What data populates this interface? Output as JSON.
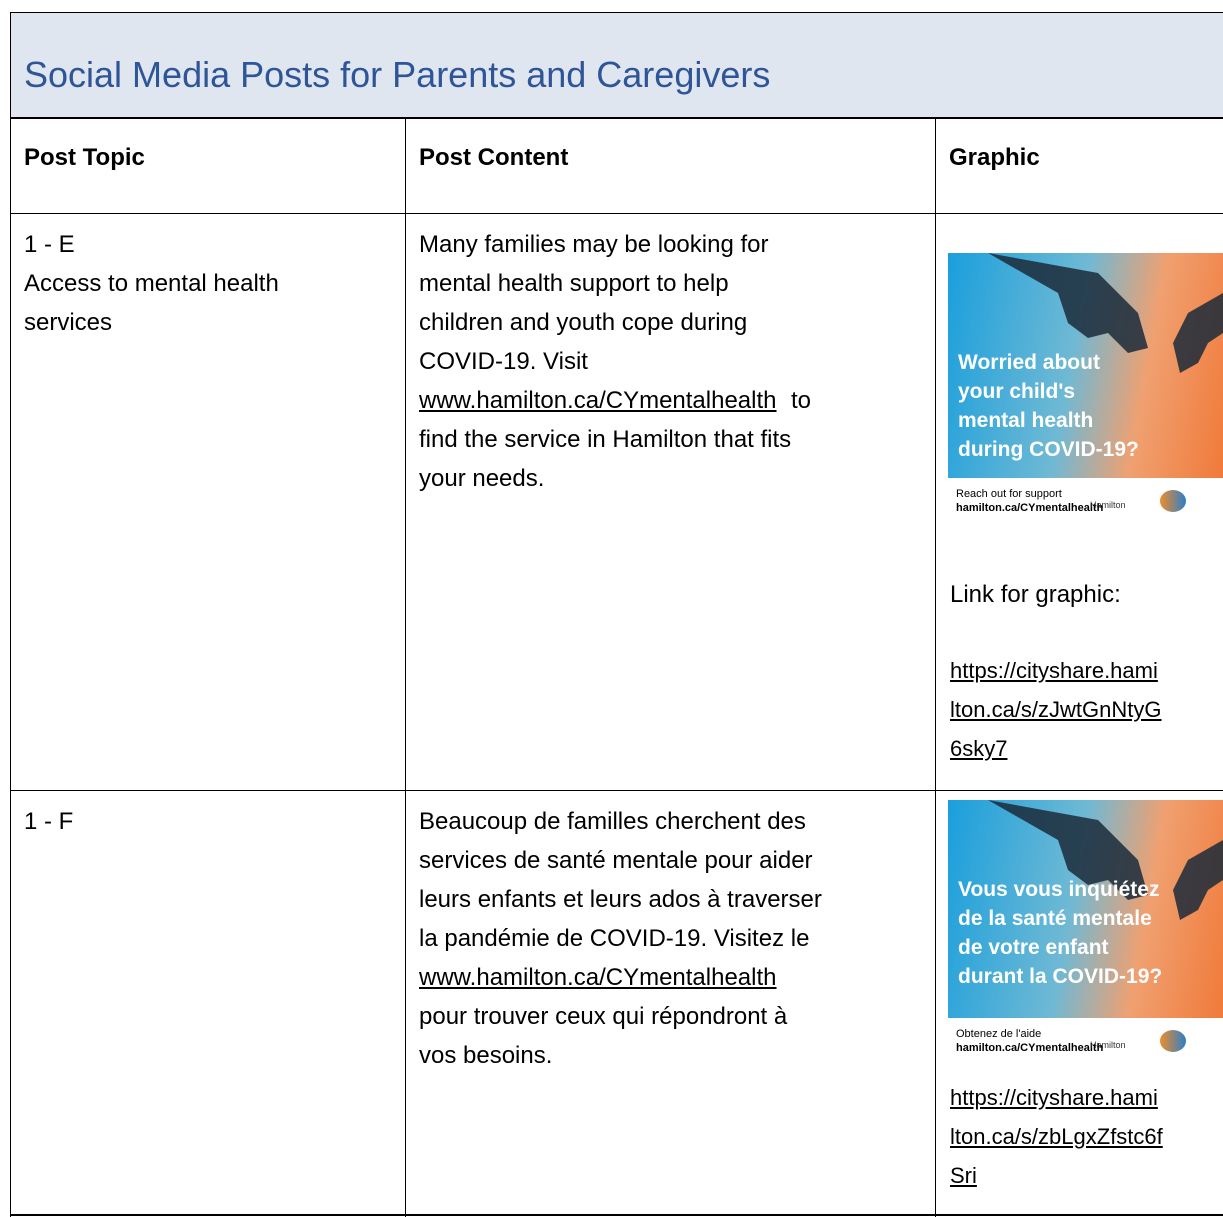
{
  "title": "Social Media Posts for Parents and Caregivers",
  "table": {
    "headers": [
      "Post Topic",
      "Post Content",
      "Graphic"
    ],
    "rows": [
      {
        "topic": [
          "1 - E",
          "Access to mental health",
          "services"
        ],
        "content": {
          "before": [
            "Many families may be looking for",
            "mental health support to help",
            "children and youth cope during",
            "COVID-19. Visit"
          ],
          "link": "www.hamilton.ca/CYmentalhealth",
          "link_after": "to",
          "after": [
            "find the service in Hamilton that fits",
            "your needs."
          ]
        },
        "graphic": {
          "headline": [
            "Worried about",
            "your child's",
            "mental health",
            "during COVID-19?"
          ],
          "footer": "Reach out for support",
          "footer_url": "hamilton.ca/CYmentalhealth",
          "logo": "Hamilton",
          "link_label": "Link for graphic:",
          "link": [
            "https://cityshare.hami",
            "lton.ca/s/zJwtGnNtyG",
            "6sky7"
          ]
        }
      },
      {
        "topic": [
          "1 - F"
        ],
        "content": {
          "before": [
            "Beaucoup de familles cherchent des",
            "services de santé mentale pour aider",
            "leurs enfants et leurs ados à traverser",
            "la pandémie de COVID-19. Visitez le"
          ],
          "link": "www.hamilton.ca/CYmentalhealth",
          "link_after": "",
          "after": [
            "pour trouver ceux qui répondront à",
            "vos besoins."
          ]
        },
        "graphic": {
          "headline": [
            "Vous vous inquiétez",
            "de la santé mentale",
            "de votre enfant",
            "durant la COVID-19?"
          ],
          "footer": "Obtenez de l'aide",
          "footer_url": "hamilton.ca/CYmentalhealth",
          "logo": "Hamilton",
          "link_label": "",
          "link": [
            "https://cityshare.hami",
            "lton.ca/s/zbLgxZfstc6f",
            "Sri"
          ]
        }
      }
    ]
  }
}
